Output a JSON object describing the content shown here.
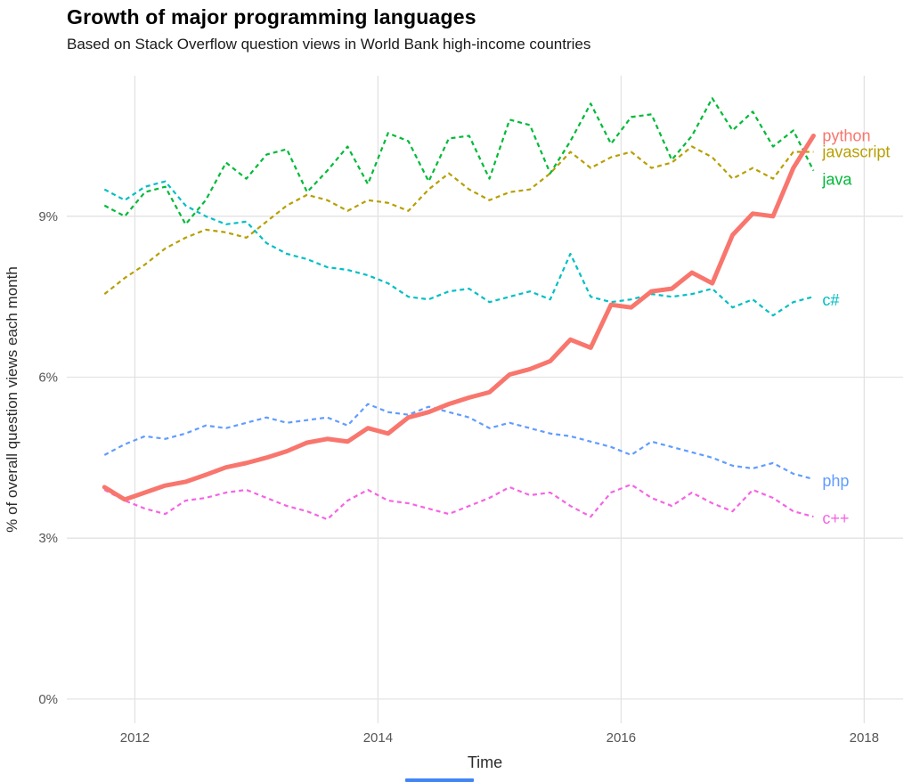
{
  "page": {
    "background": "#FFFFFF"
  },
  "chart_data": {
    "type": "line",
    "title": "Growth of major programming languages",
    "subtitle": "Based on Stack Overflow question views in World Bank high-income countries",
    "xlabel": "Time",
    "ylabel": "% of overall question views each month",
    "xlim": [
      2011.44,
      2018.32
    ],
    "ylim": [
      -0.45,
      11.62
    ],
    "grid": true,
    "grid_color": "#E3E3E3",
    "legend_position": "labels-at-line-ends",
    "x_axis": {
      "ticks": [
        2012,
        2014,
        2016,
        2018
      ],
      "labels": [
        "2012",
        "2014",
        "2016",
        "2018"
      ]
    },
    "y_axis": {
      "ticks": [
        0,
        3,
        6,
        9
      ],
      "labels": [
        "0%",
        "3%",
        "6%",
        "9%"
      ]
    },
    "x": [
      2011.75,
      2011.917,
      2012.083,
      2012.25,
      2012.417,
      2012.583,
      2012.75,
      2012.917,
      2013.083,
      2013.25,
      2013.417,
      2013.583,
      2013.75,
      2013.917,
      2014.083,
      2014.25,
      2014.417,
      2014.583,
      2014.75,
      2014.917,
      2015.083,
      2015.25,
      2015.417,
      2015.583,
      2015.75,
      2015.917,
      2016.083,
      2016.25,
      2016.417,
      2016.583,
      2016.75,
      2016.917,
      2017.083,
      2017.25,
      2017.417,
      2017.583
    ],
    "series": [
      {
        "name": "javascript",
        "label": "javascript",
        "color": "#B79F00",
        "dash": "5 4",
        "width": 2.2,
        "label_dy": 0,
        "values": [
          7.55,
          7.85,
          8.1,
          8.4,
          8.6,
          8.75,
          8.7,
          8.6,
          8.9,
          9.2,
          9.4,
          9.3,
          9.1,
          9.3,
          9.25,
          9.1,
          9.5,
          9.8,
          9.5,
          9.3,
          9.45,
          9.5,
          9.8,
          10.2,
          9.9,
          10.1,
          10.2,
          9.9,
          10.0,
          10.3,
          10.1,
          9.7,
          9.9,
          9.7,
          10.2,
          10.2
        ]
      },
      {
        "name": "java",
        "label": "java",
        "color": "#00BA38",
        "dash": "5 4",
        "width": 2.2,
        "label_dy": 10,
        "values": [
          9.2,
          9.0,
          9.45,
          9.55,
          8.85,
          9.3,
          10.0,
          9.7,
          10.15,
          10.25,
          9.45,
          9.85,
          10.3,
          9.6,
          10.55,
          10.4,
          9.65,
          10.45,
          10.5,
          9.7,
          10.8,
          10.7,
          9.8,
          10.4,
          11.1,
          10.35,
          10.85,
          10.9,
          10.05,
          10.5,
          11.2,
          10.6,
          10.95,
          10.3,
          10.6,
          9.85
        ]
      },
      {
        "name": "csharp",
        "label": "c#",
        "color": "#00BFC4",
        "dash": "5 4",
        "width": 2.2,
        "label_dy": 4,
        "values": [
          9.5,
          9.3,
          9.55,
          9.65,
          9.2,
          9.0,
          8.85,
          8.9,
          8.5,
          8.3,
          8.2,
          8.05,
          8.0,
          7.9,
          7.75,
          7.5,
          7.45,
          7.6,
          7.65,
          7.4,
          7.5,
          7.6,
          7.45,
          8.3,
          7.5,
          7.4,
          7.45,
          7.55,
          7.5,
          7.55,
          7.65,
          7.3,
          7.45,
          7.15,
          7.4,
          7.5
        ]
      },
      {
        "name": "php",
        "label": "php",
        "color": "#619CFF",
        "dash": "5 4",
        "width": 2.2,
        "label_dy": 2,
        "values": [
          4.55,
          4.75,
          4.9,
          4.85,
          4.95,
          5.1,
          5.05,
          5.15,
          5.25,
          5.15,
          5.2,
          5.25,
          5.1,
          5.5,
          5.35,
          5.3,
          5.45,
          5.35,
          5.25,
          5.05,
          5.15,
          5.05,
          4.95,
          4.9,
          4.8,
          4.7,
          4.55,
          4.8,
          4.7,
          4.6,
          4.5,
          4.35,
          4.3,
          4.4,
          4.2,
          4.1
        ]
      },
      {
        "name": "cpp",
        "label": "c++",
        "color": "#F564E3",
        "dash": "5 4",
        "width": 2.2,
        "label_dy": 2,
        "values": [
          3.9,
          3.7,
          3.55,
          3.45,
          3.7,
          3.75,
          3.85,
          3.9,
          3.75,
          3.6,
          3.5,
          3.35,
          3.7,
          3.9,
          3.7,
          3.65,
          3.55,
          3.45,
          3.6,
          3.75,
          3.95,
          3.8,
          3.85,
          3.6,
          3.4,
          3.85,
          4.0,
          3.75,
          3.6,
          3.85,
          3.65,
          3.5,
          3.9,
          3.75,
          3.5,
          3.4
        ]
      },
      {
        "name": "python",
        "label": "python",
        "color": "#F8766D",
        "dash": "",
        "width": 5,
        "label_dy": 0,
        "values": [
          3.95,
          3.72,
          3.85,
          3.98,
          4.05,
          4.18,
          4.32,
          4.4,
          4.5,
          4.62,
          4.78,
          4.85,
          4.8,
          5.05,
          4.95,
          5.25,
          5.35,
          5.5,
          5.62,
          5.72,
          6.05,
          6.15,
          6.3,
          6.7,
          6.55,
          7.35,
          7.3,
          7.6,
          7.65,
          7.95,
          7.75,
          8.65,
          9.05,
          9.0,
          9.9,
          10.5
        ]
      }
    ]
  }
}
